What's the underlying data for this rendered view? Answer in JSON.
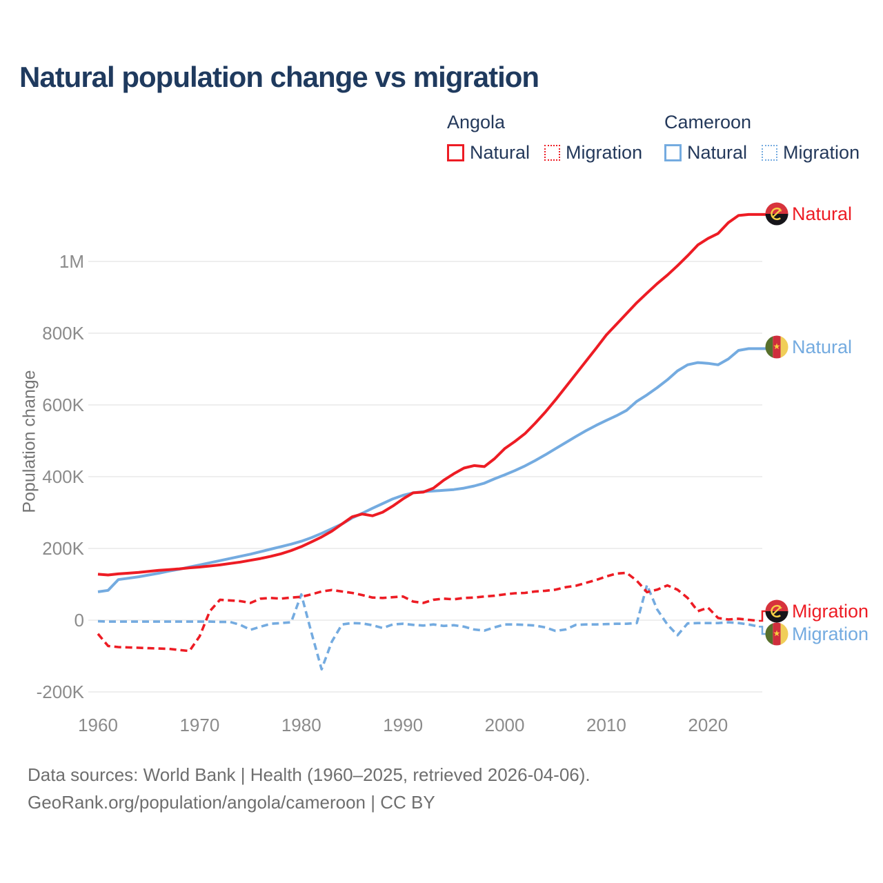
{
  "title": "Natural population change vs migration",
  "legend": {
    "groups": [
      {
        "country": "Angola",
        "items": [
          {
            "label": "Natural",
            "style": "solid"
          },
          {
            "label": "Migration",
            "style": "dotted"
          }
        ]
      },
      {
        "country": "Cameroon",
        "items": [
          {
            "label": "Natural",
            "style": "solid"
          },
          {
            "label": "Migration",
            "style": "dotted"
          }
        ]
      }
    ]
  },
  "line_labels": [
    {
      "label": "Natural",
      "country": "Angola"
    },
    {
      "label": "Natural",
      "country": "Cameroon"
    },
    {
      "label": "Migration",
      "country": "Angola"
    },
    {
      "label": "Migration",
      "country": "Cameroon"
    }
  ],
  "y_axis": {
    "title": "Population change",
    "ticks": [
      "1M",
      "800K",
      "600K",
      "400K",
      "200K",
      "0",
      "-200K"
    ],
    "tick_values": [
      1000,
      800,
      600,
      400,
      200,
      0,
      -200
    ]
  },
  "x_axis": {
    "ticks": [
      1960,
      1970,
      1980,
      1990,
      2000,
      2010,
      2020
    ]
  },
  "footer": {
    "line1": "Data sources: World Bank | Health (1960–2025, retrieved 2026-04-06).",
    "line2": "GeoRank.org/population/angola/cameroon | CC BY"
  },
  "colors": {
    "angola": "#ed1c24",
    "cameroon": "#74abe0",
    "title_text": "#1f3a5e",
    "axis_text": "#8b8b8b",
    "grid": "#e8e8e8",
    "footer_text": "#6e6e6e"
  },
  "chart_data": {
    "type": "line",
    "title": "Natural population change vs migration",
    "ylabel": "Population change",
    "units": "thousands of people (K)",
    "xlim": [
      1960,
      2025
    ],
    "ylim": [
      -200,
      1150
    ],
    "grid": "horizontal",
    "legend_position": "top-right",
    "x": [
      1960,
      1961,
      1962,
      1963,
      1964,
      1965,
      1966,
      1967,
      1968,
      1969,
      1970,
      1971,
      1972,
      1973,
      1974,
      1975,
      1976,
      1977,
      1978,
      1979,
      1980,
      1981,
      1982,
      1983,
      1984,
      1985,
      1986,
      1987,
      1988,
      1989,
      1990,
      1991,
      1992,
      1993,
      1994,
      1995,
      1996,
      1997,
      1998,
      1999,
      2000,
      2001,
      2002,
      2003,
      2004,
      2005,
      2006,
      2007,
      2008,
      2009,
      2010,
      2011,
      2012,
      2013,
      2014,
      2015,
      2016,
      2017,
      2018,
      2019,
      2020,
      2021,
      2022,
      2023,
      2024,
      2025
    ],
    "series": [
      {
        "id": "cameroon-natural",
        "name": "Cameroon Natural",
        "color": "#74abe0",
        "dash": "solid",
        "values": [
          79,
          83,
          113,
          117,
          121,
          126,
          131,
          137,
          142,
          148,
          154,
          160,
          166,
          172,
          178,
          184,
          191,
          198,
          205,
          212,
          220,
          230,
          242,
          255,
          268,
          285,
          298,
          312,
          325,
          338,
          348,
          355,
          358,
          360,
          362,
          364,
          368,
          374,
          382,
          394,
          405,
          417,
          430,
          445,
          461,
          478,
          495,
          512,
          528,
          543,
          557,
          570,
          585,
          610,
          628,
          648,
          670,
          695,
          712,
          718,
          716,
          712,
          728,
          752,
          757,
          757
        ]
      },
      {
        "id": "angola-natural",
        "name": "Angola Natural",
        "color": "#ed1c24",
        "dash": "solid",
        "values": [
          128,
          126,
          129,
          131,
          133,
          136,
          139,
          141,
          143,
          146,
          148,
          151,
          154,
          158,
          162,
          167,
          172,
          178,
          185,
          194,
          205,
          218,
          232,
          248,
          268,
          288,
          296,
          291,
          301,
          318,
          338,
          355,
          357,
          368,
          390,
          408,
          424,
          431,
          428,
          450,
          478,
          498,
          520,
          549,
          580,
          614,
          650,
          686,
          722,
          758,
          795,
          825,
          855,
          885,
          912,
          938,
          962,
          988,
          1016,
          1046,
          1064,
          1078,
          1108,
          1128,
          1131,
          1131
        ]
      },
      {
        "id": "cameroon-migration",
        "name": "Cameroon Migration",
        "color": "#74abe0",
        "dash": "dashed",
        "values": [
          -3,
          -4,
          -4,
          -4,
          -4,
          -4,
          -4,
          -4,
          -4,
          -4,
          -4,
          -4,
          -5,
          -5,
          -13,
          -27,
          -18,
          -10,
          -8,
          -6,
          72,
          -35,
          -137,
          -60,
          -12,
          -8,
          -9,
          -14,
          -22,
          -12,
          -10,
          -13,
          -15,
          -12,
          -16,
          -14,
          -18,
          -26,
          -29,
          -20,
          -12,
          -12,
          -13,
          -15,
          -20,
          -30,
          -26,
          -13,
          -12,
          -12,
          -11,
          -10,
          -10,
          -8,
          98,
          30,
          -12,
          -42,
          -9,
          -8,
          -8,
          -8,
          -6,
          -8,
          -12,
          -18
        ]
      },
      {
        "id": "angola-migration",
        "name": "Angola Migration",
        "color": "#ed1c24",
        "dash": "dashed",
        "values": [
          -38,
          -72,
          -75,
          -76,
          -77,
          -78,
          -79,
          -80,
          -83,
          -86,
          -45,
          25,
          57,
          55,
          53,
          48,
          60,
          62,
          60,
          63,
          65,
          72,
          80,
          84,
          80,
          76,
          70,
          63,
          62,
          64,
          66,
          52,
          48,
          57,
          60,
          58,
          62,
          63,
          66,
          68,
          72,
          75,
          76,
          80,
          82,
          85,
          92,
          96,
          104,
          112,
          122,
          130,
          132,
          110,
          78,
          85,
          97,
          85,
          62,
          25,
          35,
          6,
          2,
          4,
          1,
          -2
        ]
      }
    ]
  }
}
